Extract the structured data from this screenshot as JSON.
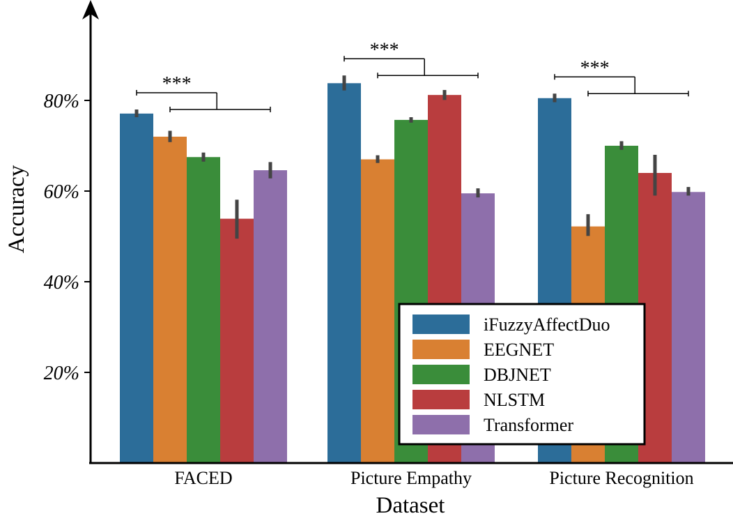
{
  "chart_data": {
    "type": "bar",
    "xlabel": "Dataset",
    "ylabel": "Accuracy",
    "ylim": [
      0,
      100
    ],
    "yticks": [
      {
        "value": 20,
        "label": "20%"
      },
      {
        "value": 40,
        "label": "40%"
      },
      {
        "value": 60,
        "label": "60%"
      },
      {
        "value": 80,
        "label": "80%"
      }
    ],
    "categories": [
      "FACED",
      "Picture Empathy",
      "Picture Recognition"
    ],
    "series": [
      {
        "name": "iFuzzyAffectDuo",
        "color": "#2c6d99",
        "values": [
          77.1,
          83.8,
          80.5
        ],
        "err_low": [
          76.3,
          82.2,
          79.6
        ],
        "err_high": [
          78.0,
          85.5,
          81.5
        ]
      },
      {
        "name": "EEGNET",
        "color": "#d98032",
        "values": [
          72.0,
          67.0,
          52.2
        ],
        "err_low": [
          70.8,
          66.2,
          50.1
        ],
        "err_high": [
          73.3,
          67.9,
          54.9
        ]
      },
      {
        "name": "DBJNET",
        "color": "#3a8d3a",
        "values": [
          67.5,
          75.7,
          70.0
        ],
        "err_low": [
          66.5,
          75.1,
          69.1
        ],
        "err_high": [
          68.5,
          76.3,
          71.0
        ]
      },
      {
        "name": "NLSTM",
        "color": "#b93d3e",
        "values": [
          53.9,
          81.2,
          64.0
        ],
        "err_low": [
          49.5,
          80.1,
          59.0
        ],
        "err_high": [
          58.1,
          82.3,
          68.0
        ]
      },
      {
        "name": "Transformer",
        "color": "#8e6fab",
        "values": [
          64.6,
          59.5,
          59.8
        ],
        "err_low": [
          62.8,
          58.6,
          59.0
        ],
        "err_high": [
          66.4,
          60.6,
          60.9
        ]
      }
    ],
    "significance": [
      {
        "category": "FACED",
        "label": "***"
      },
      {
        "category": "Picture Empathy",
        "label": "***"
      },
      {
        "category": "Picture Recognition",
        "label": "***"
      }
    ],
    "legend_placement": "lower-right",
    "grid": false
  }
}
